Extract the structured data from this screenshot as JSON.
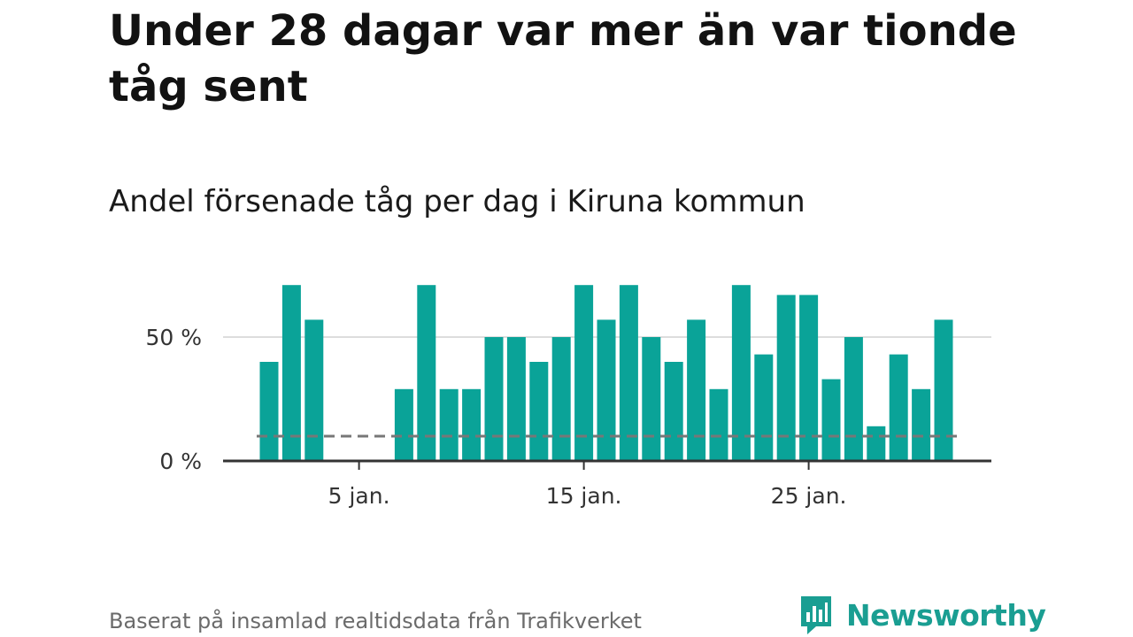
{
  "title": "Under 28 dagar var mer än var tionde tåg sent",
  "subtitle": "Andel försenade tåg per dag i Kiruna kommun",
  "footer": "Baserat på insamlad realtidsdata från Trafikverket",
  "brand": {
    "name": "Newsworthy",
    "color": "#1a9e92"
  },
  "colors": {
    "bar": "#0aa398",
    "reference": "#777777",
    "grid": "#dddddd",
    "axis": "#333333"
  },
  "chart_data": {
    "type": "bar",
    "title": "Andel försenade tåg per dag i Kiruna kommun",
    "xlabel": "",
    "ylabel": "",
    "x": [
      1,
      2,
      3,
      4,
      5,
      6,
      7,
      8,
      9,
      10,
      11,
      12,
      13,
      14,
      15,
      16,
      17,
      18,
      19,
      20,
      21,
      22,
      23,
      24,
      25,
      26,
      27,
      28,
      29,
      30,
      31
    ],
    "values": [
      40,
      71,
      57,
      0,
      0,
      0,
      29,
      71,
      29,
      29,
      50,
      50,
      40,
      50,
      71,
      57,
      71,
      50,
      40,
      57,
      29,
      71,
      43,
      67,
      67,
      33,
      50,
      14,
      43,
      29,
      57
    ],
    "unit": "%",
    "ylim": [
      0,
      75
    ],
    "yticks": [
      0,
      50
    ],
    "ytick_labels": [
      "0 %",
      "50 %"
    ],
    "xticks": [
      5,
      15,
      25
    ],
    "xtick_labels": [
      "5 jan.",
      "15 jan.",
      "25 jan."
    ],
    "reference_line": {
      "value": 10,
      "style": "dashed"
    },
    "grid": true,
    "legend": "none"
  }
}
